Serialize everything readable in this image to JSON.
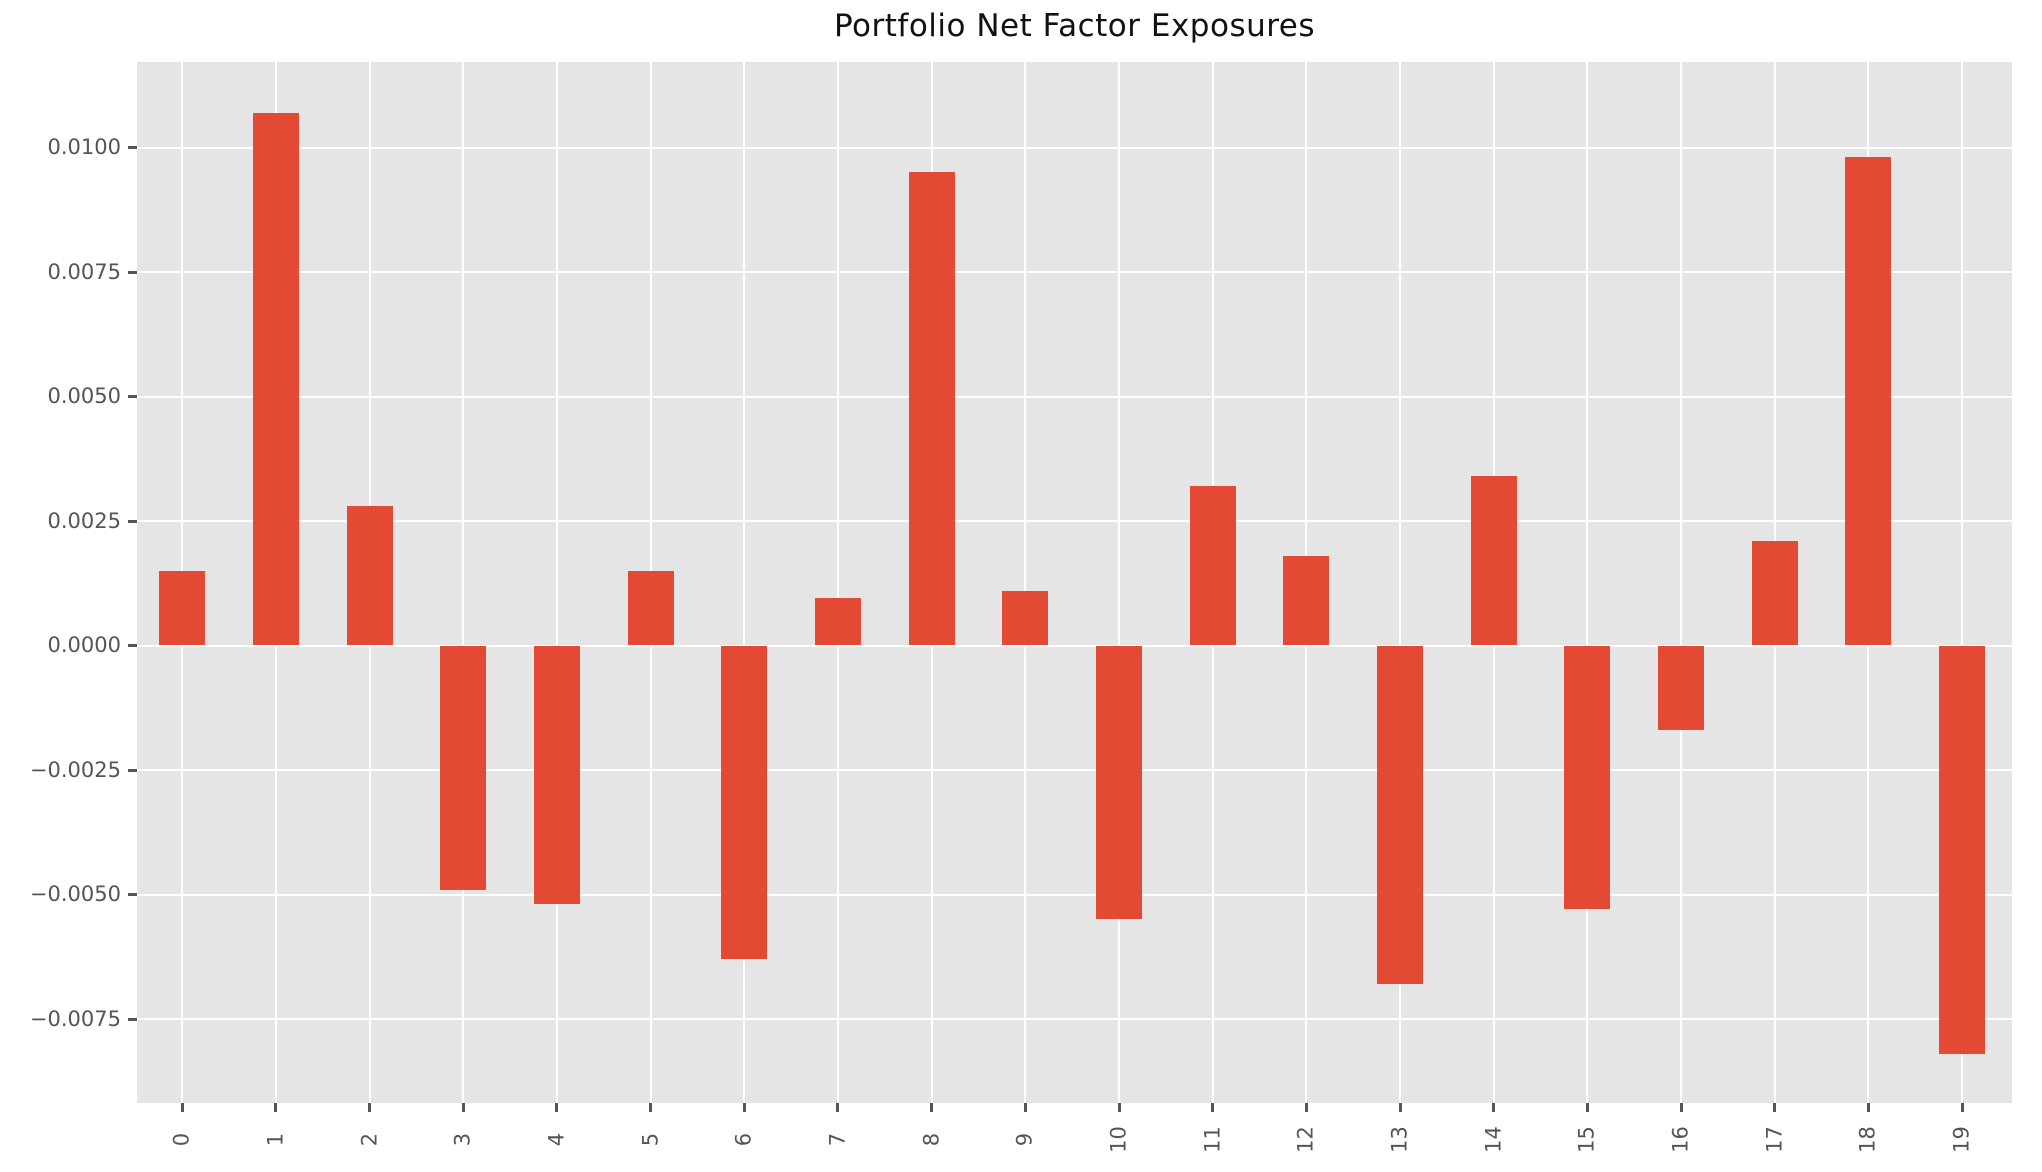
{
  "chart_data": {
    "type": "bar",
    "title": "Portfolio Net Factor Exposures",
    "xlabel": "",
    "ylabel": "",
    "categories": [
      "0",
      "1",
      "2",
      "3",
      "4",
      "5",
      "6",
      "7",
      "8",
      "9",
      "10",
      "11",
      "12",
      "13",
      "14",
      "15",
      "16",
      "17",
      "18",
      "19"
    ],
    "values": [
      0.0015,
      0.0107,
      0.0028,
      -0.0049,
      -0.0052,
      0.0015,
      -0.0063,
      0.00095,
      0.0095,
      0.0011,
      -0.0055,
      0.0032,
      0.0018,
      -0.0068,
      0.0034,
      -0.0053,
      -0.0017,
      0.0021,
      0.0098,
      -0.0082
    ],
    "ytick_values": [
      0.01,
      0.0075,
      0.005,
      0.0025,
      0.0,
      -0.0025,
      -0.005,
      -0.0075
    ],
    "ytick_labels": [
      "0.0100",
      "0.0075",
      "0.0050",
      "0.0025",
      "0.0000",
      "−0.0025",
      "−0.0050",
      "−0.0075"
    ],
    "ylim": [
      -0.00919,
      0.01172
    ],
    "grid": true,
    "legend": false,
    "colors": {
      "bar": "#e24a33",
      "plot_background": "#e5e5e5",
      "figure_background": "#ffffff",
      "grid": "#ffffff",
      "tick_text": "#555555",
      "title_text": "#111111"
    }
  }
}
